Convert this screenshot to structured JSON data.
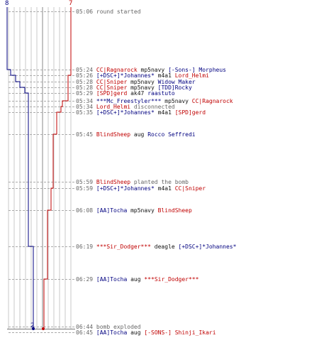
{
  "colors": {
    "ct": "#000080",
    "t": "#c00000",
    "neutral": "#666666",
    "grid": "#c8c8c8",
    "dash": "#aaaaaa"
  },
  "scores": {
    "ct_start": "8",
    "t_start": "7",
    "ct_end": "2"
  },
  "events": [
    {
      "time": "05:06",
      "parts": [
        {
          "text": "round started",
          "cls": "info"
        }
      ]
    },
    {
      "time": "05:24",
      "parts": [
        {
          "text": "CC|Ragnarock",
          "cls": "team-t"
        },
        {
          "text": " mp5navy ",
          "cls": "act"
        },
        {
          "text": "[-Sons-] Morpheus",
          "cls": "team-ct"
        }
      ]
    },
    {
      "time": "05:26",
      "parts": [
        {
          "text": "[+DSC+]*Johannes*",
          "cls": "team-ct"
        },
        {
          "text": " m4a1 ",
          "cls": "act"
        },
        {
          "text": "Lord_Helmi",
          "cls": "team-t"
        }
      ]
    },
    {
      "time": "05:28",
      "parts": [
        {
          "text": "CC|Sniper",
          "cls": "team-t"
        },
        {
          "text": " mp5navy ",
          "cls": "act"
        },
        {
          "text": "Widow Maker",
          "cls": "team-ct"
        }
      ]
    },
    {
      "time": "05:28",
      "parts": [
        {
          "text": "CC|Sniper",
          "cls": "team-t"
        },
        {
          "text": " mp5navy ",
          "cls": "act"
        },
        {
          "text": "[TDD]Rocky",
          "cls": "team-ct"
        }
      ]
    },
    {
      "time": "05:29",
      "parts": [
        {
          "text": "[SPD]gerd",
          "cls": "team-t"
        },
        {
          "text": " ak47 ",
          "cls": "act"
        },
        {
          "text": "raastuto",
          "cls": "team-ct"
        }
      ]
    },
    {
      "time": "05:34",
      "parts": [
        {
          "text": "***Mc_Freestyler***",
          "cls": "team-ct"
        },
        {
          "text": " mp5navy ",
          "cls": "act"
        },
        {
          "text": "CC|Ragnarock",
          "cls": "team-t"
        }
      ]
    },
    {
      "time": "05:34",
      "parts": [
        {
          "text": "Lord_Helmi",
          "cls": "team-t"
        },
        {
          "text": " disconnected",
          "cls": "info"
        }
      ]
    },
    {
      "time": "05:35",
      "parts": [
        {
          "text": "[+DSC+]*Johannes*",
          "cls": "team-ct"
        },
        {
          "text": " m4a1 ",
          "cls": "act"
        },
        {
          "text": "[SPD]gerd",
          "cls": "team-t"
        }
      ]
    },
    {
      "time": "05:45",
      "parts": [
        {
          "text": "BlindSheep",
          "cls": "team-t"
        },
        {
          "text": " aug ",
          "cls": "act"
        },
        {
          "text": "Rocco Seffredi",
          "cls": "team-ct"
        }
      ]
    },
    {
      "time": "05:59",
      "parts": [
        {
          "text": "BlindSheep",
          "cls": "team-t"
        },
        {
          "text": " planted the bomb",
          "cls": "info"
        }
      ]
    },
    {
      "time": "05:59",
      "parts": [
        {
          "text": "[+DSC+]*Johannes*",
          "cls": "team-ct"
        },
        {
          "text": " m4a1 ",
          "cls": "act"
        },
        {
          "text": "CC|Sniper",
          "cls": "team-t"
        }
      ]
    },
    {
      "time": "06:08",
      "parts": [
        {
          "text": "[AA]Tocha",
          "cls": "team-ct"
        },
        {
          "text": " mp5navy ",
          "cls": "act"
        },
        {
          "text": "BlindSheep",
          "cls": "team-t"
        }
      ]
    },
    {
      "time": "06:19",
      "parts": [
        {
          "text": "***Sir_Dodger***",
          "cls": "team-t"
        },
        {
          "text": " deagle ",
          "cls": "act"
        },
        {
          "text": "[+DSC+]*Johannes*",
          "cls": "team-ct"
        }
      ]
    },
    {
      "time": "06:29",
      "parts": [
        {
          "text": "[AA]Tocha",
          "cls": "team-ct"
        },
        {
          "text": " aug ",
          "cls": "act"
        },
        {
          "text": "***Sir_Dodger***",
          "cls": "team-t"
        }
      ]
    },
    {
      "time": "06:44",
      "parts": [
        {
          "text": "bomb exploded",
          "cls": "info"
        }
      ]
    },
    {
      "time": "06:45",
      "parts": [
        {
          "text": "[AA]Tocha",
          "cls": "team-ct"
        },
        {
          "text": " aug ",
          "cls": "act"
        },
        {
          "text": "[-SONS-] Shinji_Ikari",
          "cls": "team-t"
        }
      ]
    }
  ]
}
